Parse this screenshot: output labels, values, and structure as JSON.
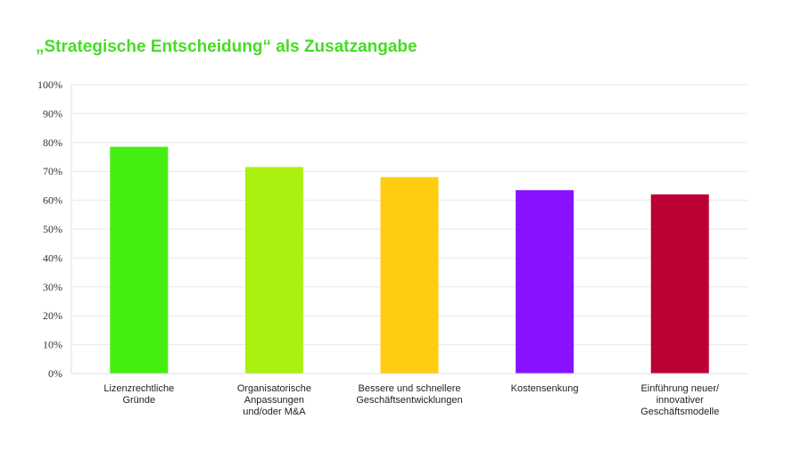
{
  "chart_data": {
    "type": "bar",
    "title": "„Strategische Entscheidung“ als Zusatzangabe",
    "categories": [
      [
        "Lizenzrechtliche",
        "Gründe"
      ],
      [
        "Organisatorische",
        "Anpassungen",
        "und/oder M&A"
      ],
      [
        "Bessere und schnellere",
        "Geschäftsentwicklungen"
      ],
      [
        "Kostensenkung"
      ],
      [
        "Einführung neuer/",
        "innovativer",
        "Geschäftsmodelle"
      ]
    ],
    "values": [
      78.5,
      71.5,
      68,
      63.5,
      62
    ],
    "colors": [
      "#44ee11",
      "#aaf011",
      "#ffcc11",
      "#8811ff",
      "#bb0033"
    ],
    "ylim": [
      0,
      100
    ],
    "yticks": [
      "0%",
      "10%",
      "20%",
      "30%",
      "40%",
      "50%",
      "60%",
      "70%",
      "80%",
      "90%",
      "100%"
    ],
    "grid": true,
    "legend": "none"
  }
}
